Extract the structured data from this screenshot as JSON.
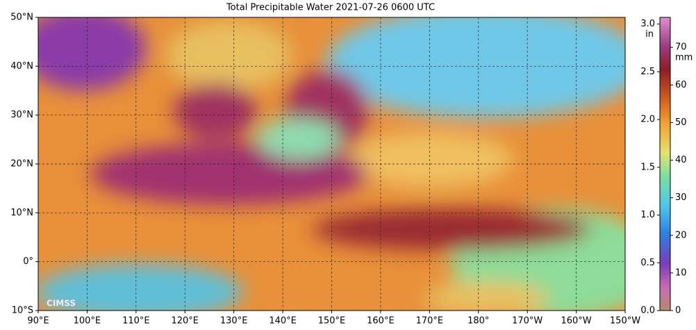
{
  "title": "Total Precipitable Water  2021-07-26 0600 UTC",
  "map": {
    "lat_labels": [
      "50°N",
      "40°N",
      "30°N",
      "20°N",
      "10°N",
      "0°",
      "10°S"
    ],
    "lon_labels": [
      "90°E",
      "100°E",
      "110°E",
      "120°E",
      "130°E",
      "140°E",
      "150°E",
      "160°E",
      "170°E",
      "180°",
      "170°W",
      "160°W",
      "150°W"
    ],
    "logo": "CIMSS"
  },
  "colorbar": {
    "in_unit": "in",
    "in_lim": [
      0,
      3.07
    ],
    "in_ticks": [
      {
        "value": 0,
        "label": "0.0"
      },
      {
        "value": 0.5,
        "label": "0.5"
      },
      {
        "value": 1,
        "label": "1.0"
      },
      {
        "value": 1.5,
        "label": "1.5"
      },
      {
        "value": 2,
        "label": "2.0"
      },
      {
        "value": 2.5,
        "label": "2.5"
      },
      {
        "value": 3,
        "label": "3.0"
      }
    ],
    "mm_unit": "mm",
    "mm_ticks": [
      0,
      10,
      20,
      30,
      40,
      50,
      60,
      70
    ]
  }
}
